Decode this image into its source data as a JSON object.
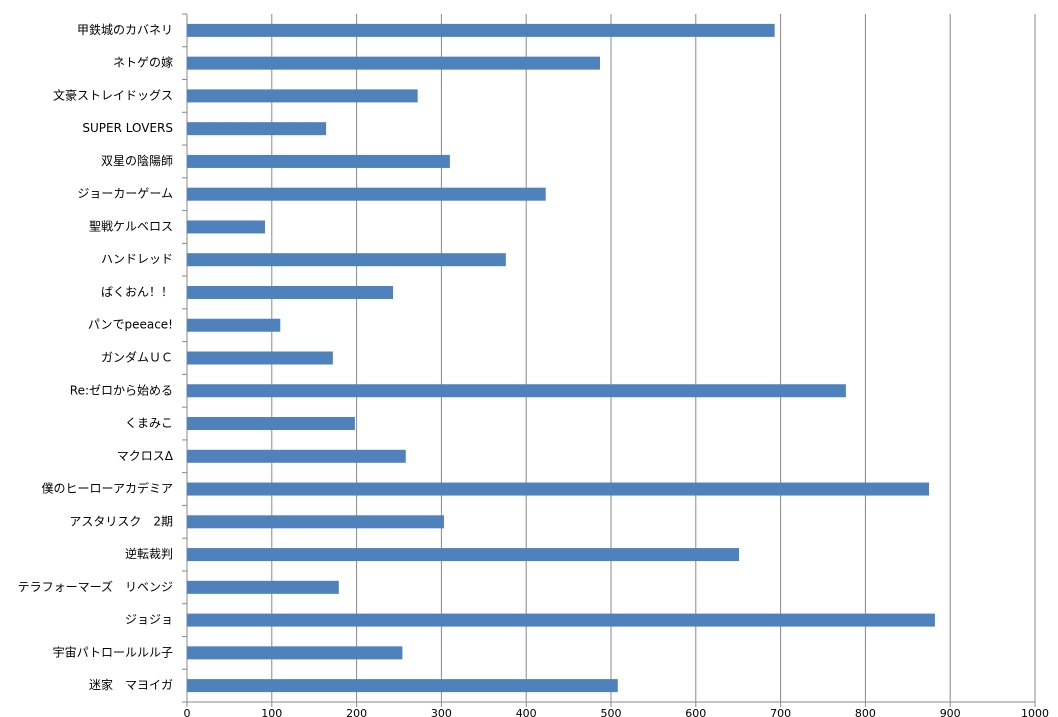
{
  "chart_data": {
    "type": "bar",
    "orientation": "horizontal",
    "categories": [
      "甲鉄城のカバネリ",
      "ネトゲの嫁",
      "文豪ストレイドッグス",
      "SUPER LOVERS",
      "双星の陰陽師",
      "ジョーカーゲーム",
      "聖戦ケルベロス",
      "ハンドレッド",
      "ばくおん！！",
      "パンでpeeace!",
      "ガンダムＵＣ",
      "Re:ゼロから始める",
      "くまみこ",
      "マクロスΔ",
      "僕のヒーローアカデミア",
      "アスタリスク　2期",
      "逆転裁判",
      "テラフォーマーズ　リベンジ",
      "ジョジョ",
      "宇宙パトロールルル子",
      "迷家　マヨイガ"
    ],
    "values": [
      693,
      487,
      272,
      164,
      310,
      423,
      92,
      376,
      243,
      110,
      172,
      777,
      198,
      258,
      875,
      303,
      651,
      179,
      882,
      254,
      508
    ],
    "color": "#4f81bd",
    "xlim": [
      0,
      1000
    ],
    "xticks": [
      0,
      100,
      200,
      300,
      400,
      500,
      600,
      700,
      800,
      900,
      1000
    ],
    "grid": true
  }
}
